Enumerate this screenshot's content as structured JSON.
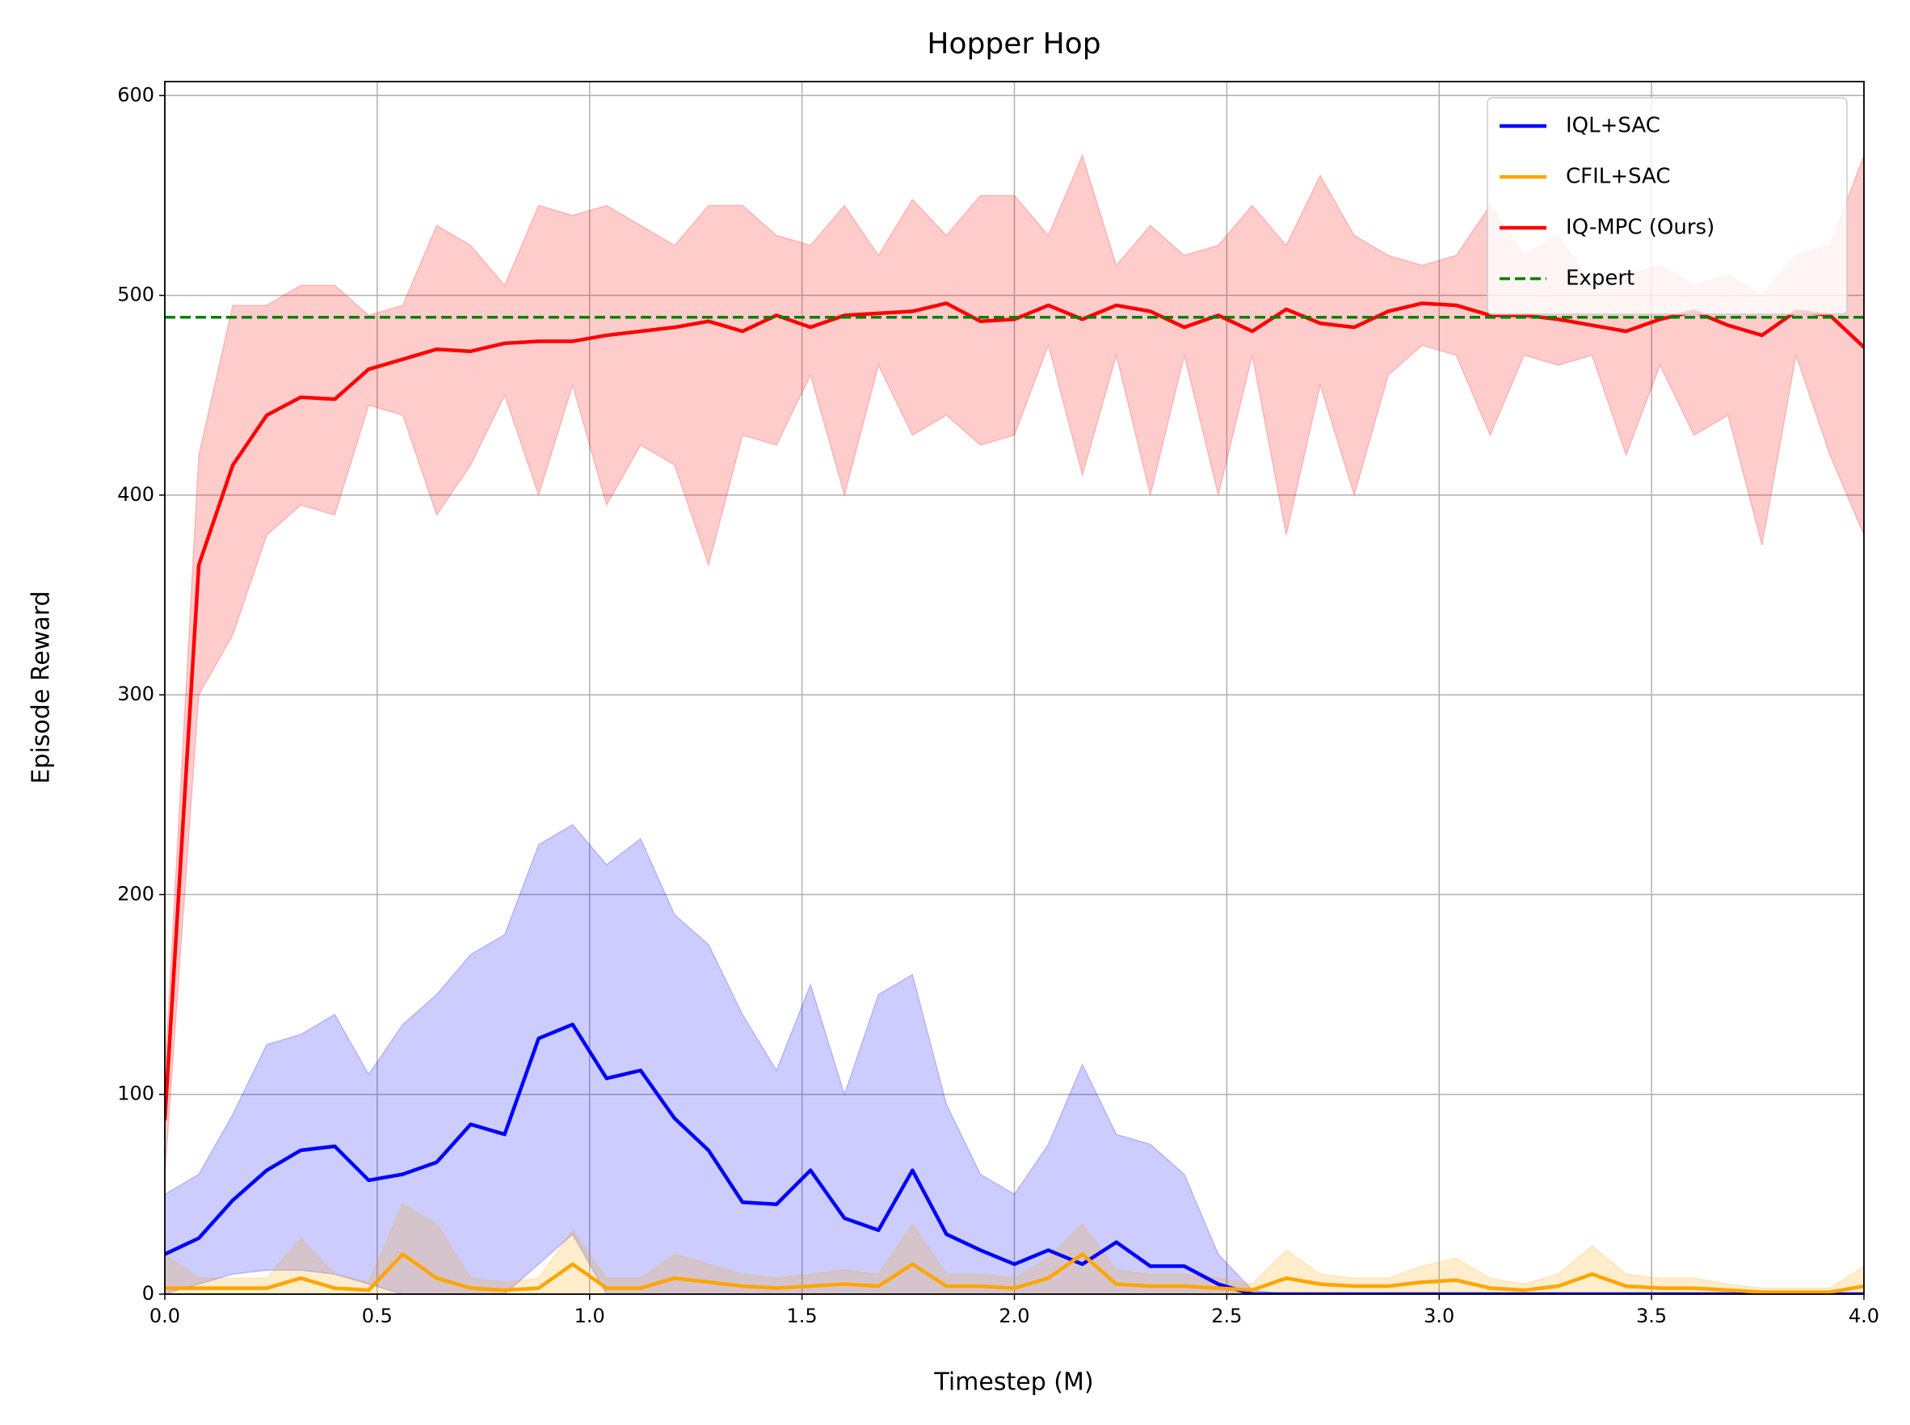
{
  "chart_data": {
    "type": "line",
    "title": "Hopper Hop",
    "xlabel": "Timestep (M)",
    "ylabel": "Episode Reward",
    "x": [
      0,
      0.08,
      0.16,
      0.24,
      0.32,
      0.4,
      0.48,
      0.56,
      0.64,
      0.72,
      0.8,
      0.88,
      0.96,
      1.04,
      1.12,
      1.2,
      1.28,
      1.36,
      1.44,
      1.52,
      1.6,
      1.68,
      1.76,
      1.84,
      1.92,
      2.0,
      2.08,
      2.16,
      2.24,
      2.32,
      2.4,
      2.48,
      2.56,
      2.64,
      2.72,
      2.8,
      2.88,
      2.96,
      3.04,
      3.12,
      3.2,
      3.28,
      3.36,
      3.44,
      3.52,
      3.6,
      3.68,
      3.76,
      3.84,
      3.92,
      4.0
    ],
    "series": [
      {
        "name": "IQL+SAC",
        "color": "#0000ff",
        "values": [
          20,
          28,
          47,
          62,
          72,
          74,
          57,
          60,
          66,
          85,
          80,
          128,
          135,
          108,
          112,
          88,
          72,
          46,
          45,
          62,
          38,
          32,
          62,
          30,
          22,
          15,
          22,
          15,
          26,
          14,
          14,
          5,
          0,
          0,
          0,
          0,
          0,
          0,
          0,
          0,
          0,
          0,
          0,
          0,
          0,
          0,
          0,
          0,
          0,
          0,
          0
        ],
        "upper": [
          50,
          60,
          90,
          125,
          130,
          140,
          110,
          135,
          150,
          170,
          180,
          225,
          235,
          215,
          228,
          190,
          175,
          140,
          112,
          155,
          100,
          150,
          160,
          95,
          60,
          50,
          75,
          115,
          80,
          75,
          60,
          20,
          2,
          0,
          0,
          0,
          0,
          0,
          0,
          0,
          0,
          0,
          0,
          0,
          0,
          0,
          0,
          0,
          0,
          0,
          0
        ],
        "lower": [
          0,
          5,
          10,
          12,
          12,
          10,
          5,
          0,
          0,
          0,
          0,
          15,
          30,
          0,
          0,
          0,
          0,
          0,
          0,
          0,
          0,
          0,
          0,
          0,
          0,
          0,
          0,
          0,
          0,
          0,
          0,
          0,
          0,
          0,
          0,
          0,
          0,
          0,
          0,
          0,
          0,
          0,
          0,
          0,
          0,
          0,
          0,
          0,
          0,
          0,
          0
        ]
      },
      {
        "name": "CFIL+SAC",
        "color": "#ffa500",
        "values": [
          3,
          3,
          3,
          3,
          8,
          3,
          2,
          20,
          8,
          3,
          2,
          3,
          15,
          3,
          3,
          8,
          6,
          4,
          3,
          4,
          5,
          4,
          15,
          4,
          4,
          3,
          8,
          20,
          5,
          4,
          4,
          3,
          2,
          8,
          5,
          4,
          4,
          6,
          7,
          3,
          2,
          4,
          10,
          4,
          3,
          3,
          2,
          1,
          1,
          1,
          4
        ],
        "upper": [
          20,
          8,
          8,
          8,
          28,
          10,
          6,
          45,
          35,
          8,
          6,
          8,
          32,
          8,
          8,
          20,
          15,
          10,
          8,
          10,
          12,
          10,
          35,
          10,
          10,
          8,
          18,
          35,
          12,
          10,
          10,
          8,
          5,
          22,
          10,
          8,
          8,
          14,
          18,
          8,
          5,
          10,
          24,
          10,
          8,
          8,
          5,
          3,
          3,
          3,
          14
        ],
        "lower": [
          0,
          0,
          0,
          0,
          0,
          0,
          0,
          0,
          0,
          0,
          0,
          0,
          0,
          0,
          0,
          0,
          0,
          0,
          0,
          0,
          0,
          0,
          0,
          0,
          0,
          0,
          0,
          0,
          0,
          0,
          0,
          0,
          0,
          0,
          0,
          0,
          0,
          0,
          0,
          0,
          0,
          0,
          0,
          0,
          0,
          0,
          0,
          0,
          0,
          0,
          0
        ]
      },
      {
        "name": "IQ-MPC (Ours)",
        "color": "#ff0000",
        "values": [
          87,
          365,
          415,
          440,
          449,
          448,
          463,
          468,
          473,
          472,
          476,
          477,
          477,
          480,
          482,
          484,
          487,
          482,
          490,
          484,
          490,
          491,
          492,
          496,
          487,
          488,
          495,
          488,
          495,
          492,
          484,
          490,
          482,
          493,
          486,
          484,
          492,
          496,
          495,
          490,
          490,
          488,
          485,
          482,
          488,
          492,
          485,
          480,
          492,
          490,
          474
        ],
        "upper": [
          110,
          420,
          495,
          495,
          505,
          505,
          490,
          495,
          535,
          525,
          505,
          545,
          540,
          545,
          535,
          525,
          545,
          545,
          530,
          525,
          545,
          520,
          548,
          530,
          550,
          550,
          530,
          570,
          515,
          535,
          520,
          525,
          545,
          525,
          560,
          530,
          520,
          515,
          520,
          545,
          520,
          530,
          505,
          510,
          515,
          505,
          510,
          500,
          520,
          525,
          570
        ],
        "lower": [
          60,
          300,
          330,
          380,
          395,
          390,
          445,
          440,
          390,
          415,
          450,
          400,
          455,
          395,
          425,
          415,
          365,
          430,
          425,
          460,
          400,
          465,
          430,
          440,
          425,
          430,
          475,
          410,
          470,
          400,
          470,
          400,
          470,
          380,
          455,
          400,
          460,
          475,
          470,
          430,
          470,
          465,
          470,
          420,
          465,
          430,
          440,
          375,
          470,
          420,
          380
        ]
      }
    ],
    "reference_lines": [
      {
        "name": "Expert",
        "value": 489,
        "color": "#008000"
      }
    ],
    "xlim": [
      0,
      4
    ],
    "ylim": [
      0,
      607
    ],
    "xticks": [
      {
        "value": 0,
        "label": "0.0"
      },
      {
        "value": 0.5,
        "label": "0.5"
      },
      {
        "value": 1,
        "label": "1.0"
      },
      {
        "value": 1.5,
        "label": "1.5"
      },
      {
        "value": 2,
        "label": "2.0"
      },
      {
        "value": 2.5,
        "label": "2.5"
      },
      {
        "value": 3,
        "label": "3.0"
      },
      {
        "value": 3.5,
        "label": "3.5"
      },
      {
        "value": 4,
        "label": "4.0"
      }
    ],
    "yticks": [
      0,
      100,
      200,
      300,
      400,
      500,
      600
    ],
    "grid": true,
    "legend": "upper right"
  }
}
